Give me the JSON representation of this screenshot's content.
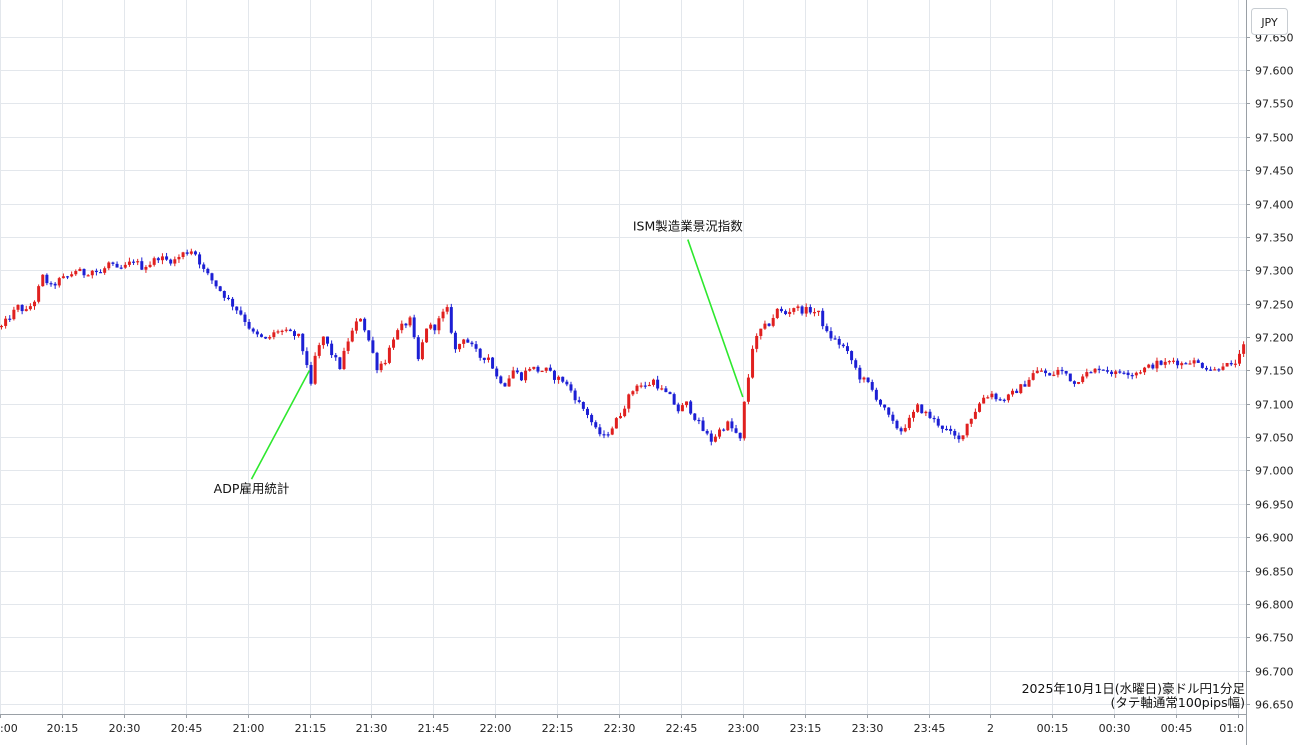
{
  "chart_data": {
    "type": "candlestick",
    "currency_label": "JPY",
    "caption_line1": "2025年10月1日(水曜日)豪ドル円1分足",
    "caption_line2": "(タテ軸通常100pips幅)",
    "y_ticks": [
      "97.650",
      "97.600",
      "97.550",
      "97.500",
      "97.450",
      "97.400",
      "97.350",
      "97.300",
      "97.250",
      "97.200",
      "97.150",
      "97.100",
      "97.050",
      "97.000",
      "96.950",
      "96.900",
      "96.850",
      "96.800",
      "96.750",
      "96.700",
      "96.650"
    ],
    "ylim": [
      96.635,
      97.705
    ],
    "x_ticks": [
      ":00",
      "20:15",
      "20:30",
      "20:45",
      "21:00",
      "21:15",
      "21:30",
      "21:45",
      "22:00",
      "22:15",
      "22:30",
      "22:45",
      "23:00",
      "23:15",
      "23:30",
      "23:45",
      "2",
      "00:15",
      "00:30",
      "00:45",
      "01:0"
    ],
    "annotations": [
      {
        "text": "ADP雇用統計",
        "time": "21:15",
        "price": 97.15,
        "label_price": 96.975
      },
      {
        "text": "ISM製造業景況指数",
        "time": "23:00",
        "price": 97.11,
        "label_price": 97.355
      }
    ],
    "colors": {
      "up": "#e0201f",
      "down": "#1c1fd4",
      "grid": "#e3e7ec",
      "annotation_line": "#2ee82e"
    },
    "path": [
      [
        0,
        97.215
      ],
      [
        2,
        97.23
      ],
      [
        4,
        97.245
      ],
      [
        6,
        97.238
      ],
      [
        8,
        97.255
      ],
      [
        10,
        97.29
      ],
      [
        12,
        97.275
      ],
      [
        14,
        97.285
      ],
      [
        16,
        97.29
      ],
      [
        18,
        97.3
      ],
      [
        20,
        97.295
      ],
      [
        22,
        97.3
      ],
      [
        24,
        97.295
      ],
      [
        26,
        97.31
      ],
      [
        28,
        97.3
      ],
      [
        30,
        97.305
      ],
      [
        32,
        97.315
      ],
      [
        34,
        97.305
      ],
      [
        36,
        97.31
      ],
      [
        38,
        97.32
      ],
      [
        40,
        97.315
      ],
      [
        42,
        97.315
      ],
      [
        44,
        97.325
      ],
      [
        46,
        97.33
      ],
      [
        47,
        97.325
      ],
      [
        49,
        97.3
      ],
      [
        51,
        97.285
      ],
      [
        53,
        97.27
      ],
      [
        55,
        97.255
      ],
      [
        58,
        97.235
      ],
      [
        61,
        97.205
      ],
      [
        64,
        97.195
      ],
      [
        67,
        97.21
      ],
      [
        70,
        97.205
      ],
      [
        72,
        97.2
      ],
      [
        74,
        97.16
      ],
      [
        75,
        97.125
      ],
      [
        76,
        97.17
      ],
      [
        78,
        97.2
      ],
      [
        80,
        97.175
      ],
      [
        82,
        97.155
      ],
      [
        84,
        97.195
      ],
      [
        86,
        97.22
      ],
      [
        87,
        97.23
      ],
      [
        89,
        97.195
      ],
      [
        91,
        97.155
      ],
      [
        93,
        97.165
      ],
      [
        95,
        97.2
      ],
      [
        97,
        97.215
      ],
      [
        99,
        97.225
      ],
      [
        101,
        97.165
      ],
      [
        103,
        97.215
      ],
      [
        105,
        97.215
      ],
      [
        107,
        97.235
      ],
      [
        108,
        97.24
      ],
      [
        110,
        97.18
      ],
      [
        112,
        97.2
      ],
      [
        114,
        97.185
      ],
      [
        116,
        97.17
      ],
      [
        118,
        97.17
      ],
      [
        120,
        97.14
      ],
      [
        122,
        97.13
      ],
      [
        124,
        97.15
      ],
      [
        126,
        97.14
      ],
      [
        128,
        97.155
      ],
      [
        130,
        97.15
      ],
      [
        132,
        97.15
      ],
      [
        134,
        97.14
      ],
      [
        136,
        97.135
      ],
      [
        138,
        97.12
      ],
      [
        140,
        97.1
      ],
      [
        142,
        97.085
      ],
      [
        144,
        97.06
      ],
      [
        146,
        97.05
      ],
      [
        148,
        97.065
      ],
      [
        150,
        97.085
      ],
      [
        152,
        97.11
      ],
      [
        154,
        97.13
      ],
      [
        156,
        97.125
      ],
      [
        158,
        97.135
      ],
      [
        160,
        97.12
      ],
      [
        162,
        97.11
      ],
      [
        164,
        97.09
      ],
      [
        166,
        97.1
      ],
      [
        168,
        97.08
      ],
      [
        170,
        97.06
      ],
      [
        172,
        97.045
      ],
      [
        174,
        97.06
      ],
      [
        176,
        97.07
      ],
      [
        178,
        97.055
      ],
      [
        179,
        97.045
      ],
      [
        180,
        97.1
      ],
      [
        181,
        97.14
      ],
      [
        182,
        97.185
      ],
      [
        184,
        97.21
      ],
      [
        186,
        97.22
      ],
      [
        188,
        97.24
      ],
      [
        190,
        97.235
      ],
      [
        192,
        97.245
      ],
      [
        194,
        97.24
      ],
      [
        196,
        97.24
      ],
      [
        198,
        97.235
      ],
      [
        200,
        97.205
      ],
      [
        202,
        97.195
      ],
      [
        204,
        97.185
      ],
      [
        206,
        97.165
      ],
      [
        208,
        97.14
      ],
      [
        210,
        97.13
      ],
      [
        212,
        97.11
      ],
      [
        214,
        97.09
      ],
      [
        216,
        97.07
      ],
      [
        218,
        97.06
      ],
      [
        220,
        97.075
      ],
      [
        222,
        97.095
      ],
      [
        224,
        97.085
      ],
      [
        226,
        97.075
      ],
      [
        228,
        97.065
      ],
      [
        230,
        97.055
      ],
      [
        232,
        97.045
      ],
      [
        234,
        97.07
      ],
      [
        236,
        97.09
      ],
      [
        238,
        97.11
      ],
      [
        240,
        97.115
      ],
      [
        242,
        97.105
      ],
      [
        244,
        97.11
      ],
      [
        246,
        97.12
      ],
      [
        248,
        97.13
      ],
      [
        250,
        97.145
      ],
      [
        252,
        97.15
      ],
      [
        254,
        97.14
      ],
      [
        256,
        97.15
      ],
      [
        258,
        97.145
      ],
      [
        260,
        97.13
      ],
      [
        262,
        97.145
      ],
      [
        264,
        97.145
      ],
      [
        266,
        97.155
      ],
      [
        268,
        97.15
      ],
      [
        270,
        97.145
      ],
      [
        272,
        97.15
      ],
      [
        274,
        97.145
      ],
      [
        276,
        97.15
      ],
      [
        278,
        97.155
      ],
      [
        280,
        97.16
      ],
      [
        282,
        97.16
      ],
      [
        284,
        97.165
      ],
      [
        286,
        97.16
      ],
      [
        288,
        97.165
      ],
      [
        290,
        97.16
      ],
      [
        292,
        97.155
      ],
      [
        294,
        97.15
      ],
      [
        296,
        97.16
      ],
      [
        298,
        97.155
      ],
      [
        300,
        97.17
      ],
      [
        301,
        97.185
      ]
    ]
  }
}
